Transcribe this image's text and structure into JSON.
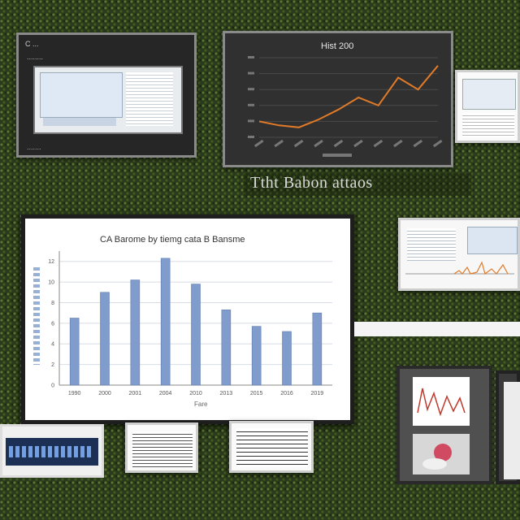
{
  "panel_a": {
    "title": "C ...",
    "subtitle": "........",
    "footer": "......."
  },
  "panel_b": {
    "title": "Hist 200",
    "chart_data": {
      "type": "line",
      "x": [
        1,
        2,
        3,
        4,
        5,
        6,
        7,
        8,
        9,
        10
      ],
      "values": [
        8,
        6,
        5,
        9,
        14,
        20,
        16,
        30,
        24,
        36
      ],
      "color": "#e07a28"
    }
  },
  "banner_title": "Ttht Babon attaos",
  "main_chart": {
    "chart_data": {
      "type": "bar",
      "title": "CA Barome by tiemg cata B Bansme",
      "ylabel": "",
      "xlabel": "Fare",
      "categories": [
        "1990",
        "2000",
        "2001",
        "2004",
        "2010",
        "2013",
        "2015",
        "2016",
        "2019"
      ],
      "values": [
        6.5,
        9.0,
        10.2,
        12.3,
        9.8,
        7.3,
        5.7,
        5.2,
        7.0
      ],
      "ylim": [
        0,
        13
      ],
      "y_ticks": [
        "0",
        "2",
        "4",
        "6",
        "8",
        "10",
        "12"
      ],
      "color": "#7f9ccc",
      "grid": true
    }
  },
  "colors": {
    "foliage": "#2b3a1c",
    "dark_panel": "#2a2a2a",
    "bar": "#7f9ccc",
    "line": "#e07a28"
  }
}
